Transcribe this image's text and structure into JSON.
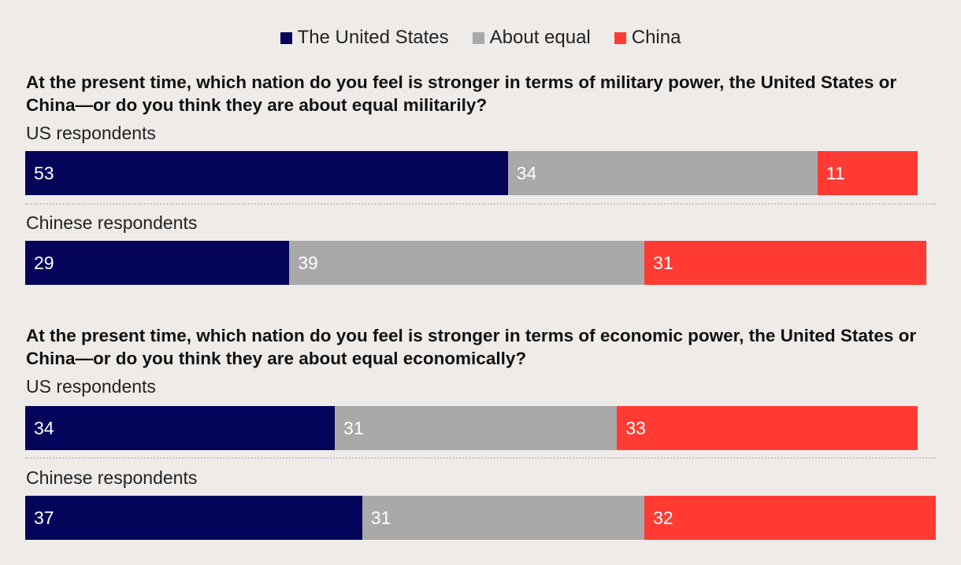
{
  "legend": {
    "items": [
      {
        "label": "The United States",
        "color": "#04045a"
      },
      {
        "label": "About equal",
        "color": "#a9a9a9"
      },
      {
        "label": "China",
        "color": "#ff3b34"
      }
    ]
  },
  "colors": {
    "us": "#04045a",
    "equal": "#a9a9a9",
    "china": "#ff3b34"
  },
  "chart_data": [
    {
      "type": "bar",
      "orientation": "horizontal",
      "stacked": true,
      "title": "At the present time, which nation do you feel is stronger in terms of military power, the United States or China—or do you think they are about equal militarily?",
      "categories": [
        "US respondents",
        "Chinese respondents"
      ],
      "series": [
        {
          "name": "The United States",
          "values": [
            53,
            29
          ]
        },
        {
          "name": "About equal",
          "values": [
            34,
            39
          ]
        },
        {
          "name": "China",
          "values": [
            11,
            31
          ]
        }
      ]
    },
    {
      "type": "bar",
      "orientation": "horizontal",
      "stacked": true,
      "title": "At the present time, which nation do you feel is stronger in terms of economic power, the United States or China—or do you think they are about equal economically?",
      "categories": [
        "US respondents",
        "Chinese respondents"
      ],
      "series": [
        {
          "name": "The United States",
          "values": [
            34,
            37
          ]
        },
        {
          "name": "About equal",
          "values": [
            31,
            31
          ]
        },
        {
          "name": "China",
          "values": [
            33,
            32
          ]
        }
      ]
    }
  ]
}
